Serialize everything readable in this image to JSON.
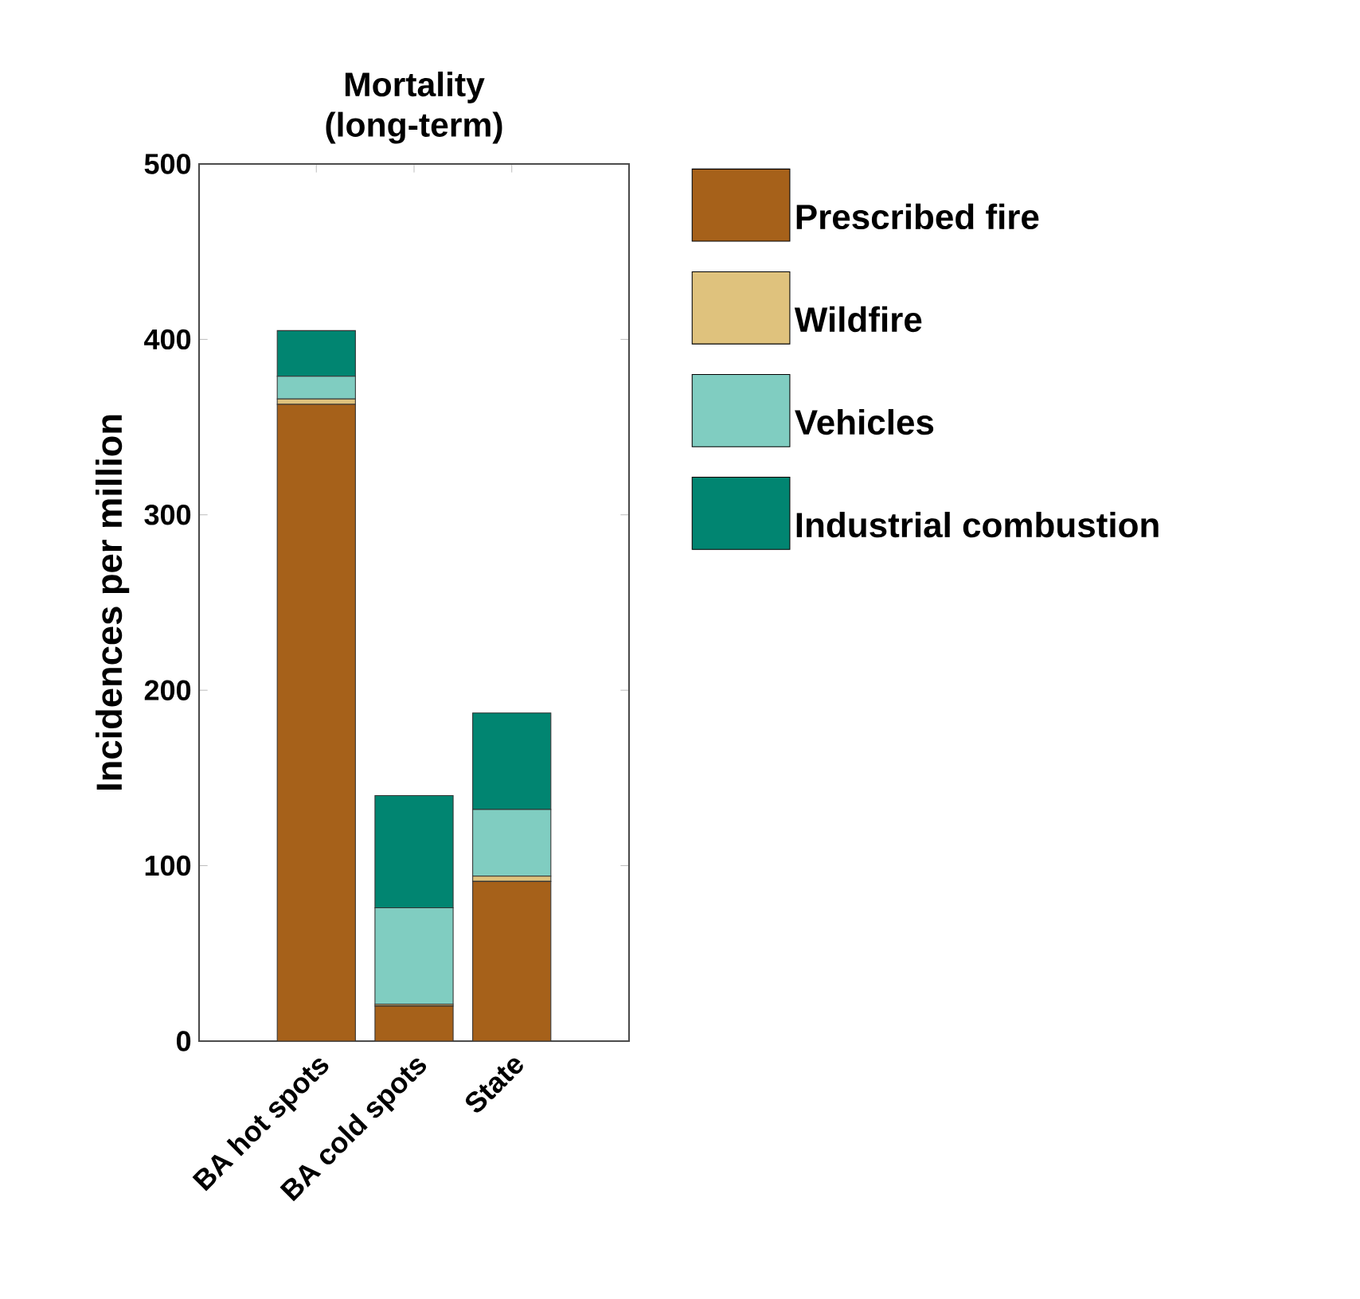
{
  "chart_data": {
    "type": "bar",
    "stacked": true,
    "title": "Mortality (long-term)",
    "ylabel": "Incidences per million",
    "categories": [
      "BA hot spots",
      "BA cold spots",
      "State"
    ],
    "series": [
      {
        "name": "Prescribed fire",
        "color": "#a6611a",
        "values": [
          363,
          20,
          91
        ]
      },
      {
        "name": "Wildfire",
        "color": "#dfc27d",
        "values": [
          3,
          1,
          3
        ]
      },
      {
        "name": "Vehicles",
        "color": "#80cdc1",
        "values": [
          13,
          55,
          38
        ]
      },
      {
        "name": "Industrial combustion",
        "color": "#018571",
        "values": [
          26,
          64,
          55
        ]
      }
    ],
    "ylim": [
      0,
      500
    ],
    "yticks": [
      0,
      100,
      200,
      300,
      400,
      500
    ],
    "legend": "right"
  }
}
